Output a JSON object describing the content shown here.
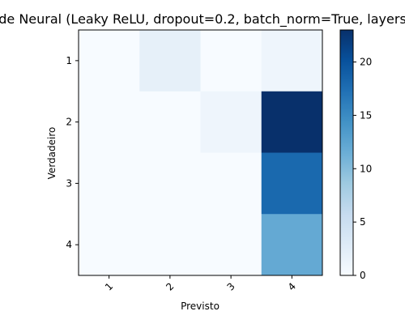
{
  "chart_data": {
    "type": "heatmap",
    "title": "de Neural (Leaky ReLU, dropout=0.2, batch_norm=True, layers",
    "xlabel": "Previsto",
    "ylabel": "Verdadeiro",
    "x_categories": [
      "1",
      "2",
      "3",
      "4"
    ],
    "y_categories": [
      "1",
      "2",
      "3",
      "4"
    ],
    "values": [
      [
        0,
        2,
        0,
        1
      ],
      [
        0,
        0,
        1,
        23
      ],
      [
        0,
        0,
        0,
        18
      ],
      [
        0,
        0,
        0,
        12
      ]
    ],
    "colormap": "Blues",
    "vmin": 0,
    "vmax": 23,
    "colorbar_ticks": [
      0,
      5,
      10,
      15,
      20
    ],
    "colorbar_tick_labels": [
      "0",
      "5",
      "10",
      "15",
      "20"
    ],
    "grid": false
  }
}
